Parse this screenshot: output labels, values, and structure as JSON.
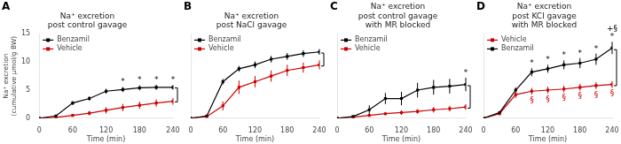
{
  "chart_data": [
    {
      "type": "line",
      "label": "A",
      "title": [
        "Na⁺ excretion",
        "post control gavage"
      ],
      "xlabel": "Time (min)",
      "ylabel": "Na⁺ excretion\n(cumulative μmol/g BW)",
      "x": [
        0,
        30,
        60,
        90,
        120,
        150,
        180,
        210,
        240
      ],
      "series": [
        {
          "name": "Benzamil",
          "color": "#000000",
          "marker": "square",
          "values": [
            0.0,
            0.4,
            2.7,
            3.5,
            4.8,
            5.1,
            5.4,
            5.5,
            5.5
          ],
          "errors": [
            0.0,
            0.15,
            0.35,
            0.4,
            0.45,
            0.45,
            0.45,
            0.45,
            0.4
          ]
        },
        {
          "name": "Vehicle",
          "color": "#cc0000",
          "marker": "square",
          "values": [
            0.0,
            0.15,
            0.5,
            0.9,
            1.4,
            1.9,
            2.3,
            2.7,
            3.0
          ],
          "errors": [
            0.0,
            0.1,
            0.2,
            0.4,
            0.55,
            0.65,
            0.65,
            0.65,
            0.6
          ]
        }
      ],
      "legend_entries": [
        "Benzamil",
        "Vehicle"
      ],
      "annotations": [
        {
          "text": "*",
          "x": 150,
          "series": "Benzamil",
          "position": "above",
          "color": "#000000"
        },
        {
          "text": "*",
          "x": 180,
          "series": "Benzamil",
          "position": "above",
          "color": "#000000"
        },
        {
          "text": "*",
          "x": 210,
          "series": "Benzamil",
          "position": "above",
          "color": "#000000"
        },
        {
          "text": "*",
          "x": 240,
          "series": "Benzamil",
          "position": "above",
          "color": "#000000"
        }
      ],
      "bracket": [
        2.9,
        5.4
      ],
      "xlim": [
        0,
        240
      ],
      "xticks": [
        0,
        60,
        120,
        180,
        240
      ],
      "ylim": [
        0,
        15
      ],
      "yticks": [
        0,
        5,
        10,
        15
      ],
      "grid": false,
      "legend": "upper left"
    },
    {
      "type": "line",
      "label": "B",
      "title": [
        "Na⁺ excretion",
        "post NaCl gavage"
      ],
      "xlabel": "Time (min)",
      "x": [
        0,
        30,
        60,
        90,
        120,
        150,
        180,
        210,
        240
      ],
      "series": [
        {
          "name": "Benzamil",
          "color": "#000000",
          "marker": "square",
          "values": [
            0.0,
            0.4,
            6.5,
            8.8,
            9.5,
            10.5,
            11.0,
            11.5,
            11.8
          ],
          "errors": [
            0.0,
            0.2,
            0.5,
            0.5,
            0.6,
            0.6,
            0.6,
            0.6,
            0.5
          ]
        },
        {
          "name": "Vehicle",
          "color": "#cc0000",
          "marker": "square",
          "values": [
            0.0,
            0.3,
            2.2,
            5.5,
            6.5,
            7.5,
            8.5,
            9.0,
            9.5
          ],
          "errors": [
            0.0,
            0.2,
            0.8,
            1.2,
            1.0,
            1.0,
            1.0,
            0.9,
            0.8
          ]
        }
      ],
      "legend_entries": [
        "Benzamil",
        "Vehicle"
      ],
      "bracket": [
        9.3,
        11.6
      ],
      "xlim": [
        0,
        240
      ],
      "xticks": [
        0,
        60,
        120,
        180,
        240
      ],
      "ylim": [
        0,
        15
      ],
      "yticks": [
        0,
        5,
        10,
        15
      ],
      "grid": false,
      "legend": "upper left",
      "tick_labels": "x"
    },
    {
      "type": "line",
      "label": "C",
      "title": [
        "Na⁺ excretion",
        "post control gavage",
        "with MR blocked"
      ],
      "xlabel": "Time (min)",
      "x": [
        0,
        30,
        60,
        90,
        120,
        150,
        180,
        210,
        240
      ],
      "series": [
        {
          "name": "Benzamil",
          "color": "#000000",
          "marker": "square",
          "values": [
            0.0,
            0.3,
            1.5,
            3.5,
            3.5,
            5.0,
            5.5,
            5.7,
            6.0
          ],
          "errors": [
            0.0,
            0.2,
            0.8,
            1.0,
            1.2,
            1.3,
            1.3,
            1.3,
            1.2
          ]
        },
        {
          "name": "Vehicle",
          "color": "#cc0000",
          "marker": "square",
          "values": [
            0.0,
            0.2,
            0.5,
            0.8,
            1.0,
            1.2,
            1.5,
            1.7,
            2.0
          ],
          "errors": [
            0.0,
            0.1,
            0.2,
            0.3,
            0.4,
            0.4,
            0.5,
            0.5,
            0.5
          ]
        }
      ],
      "legend_entries": [
        "Benzamil",
        "Vehicle"
      ],
      "annotations": [
        {
          "text": "*",
          "x": 240,
          "series": "Benzamil",
          "position": "above",
          "color": "#000000"
        }
      ],
      "bracket": [
        1.8,
        5.8
      ],
      "xlim": [
        0,
        240
      ],
      "xticks": [
        0,
        60,
        120,
        180,
        240
      ],
      "ylim": [
        0,
        15
      ],
      "yticks": [
        0,
        5,
        10,
        15
      ],
      "grid": false,
      "legend": "upper left",
      "tick_labels": "x"
    },
    {
      "type": "line",
      "label": "D",
      "title": [
        "Na⁺ excretion",
        "post KCl gavage",
        "with MR blocked"
      ],
      "xlabel": "Time (min)",
      "x": [
        0,
        30,
        60,
        90,
        120,
        150,
        180,
        210,
        240
      ],
      "series": [
        {
          "name": "Benzamil",
          "color": "#000000",
          "marker": "square",
          "values": [
            0.0,
            1.0,
            5.0,
            8.2,
            8.8,
            9.5,
            9.8,
            10.5,
            12.5
          ],
          "errors": [
            0.0,
            0.3,
            0.5,
            0.7,
            0.7,
            0.8,
            0.9,
            1.0,
            1.1
          ]
        },
        {
          "name": "Vehicle",
          "color": "#cc0000",
          "marker": "square",
          "values": [
            0.0,
            0.8,
            4.2,
            4.8,
            5.0,
            5.2,
            5.5,
            5.8,
            6.0
          ],
          "errors": [
            0.0,
            0.3,
            0.6,
            0.6,
            0.6,
            0.6,
            0.6,
            0.6,
            0.6
          ]
        }
      ],
      "legend_entries": [
        "Vehicle",
        "Benzamil"
      ],
      "annotations": [
        {
          "text": "*",
          "x": 90,
          "series": "Benzamil",
          "position": "above",
          "color": "#000000"
        },
        {
          "text": "*",
          "x": 120,
          "series": "Benzamil",
          "position": "above",
          "color": "#000000"
        },
        {
          "text": "*",
          "x": 150,
          "series": "Benzamil",
          "position": "above",
          "color": "#000000"
        },
        {
          "text": "*",
          "x": 180,
          "series": "Benzamil",
          "position": "above",
          "color": "#000000"
        },
        {
          "text": "*",
          "x": 210,
          "series": "Benzamil",
          "position": "above",
          "color": "#000000"
        },
        {
          "text": "*",
          "x": 240,
          "series": "Benzamil",
          "position": "above",
          "color": "#000000"
        },
        {
          "text": "§",
          "x": 90,
          "series": "Vehicle",
          "position": "below",
          "color": "#cc0000"
        },
        {
          "text": "§",
          "x": 120,
          "series": "Vehicle",
          "position": "below",
          "color": "#cc0000"
        },
        {
          "text": "§",
          "x": 150,
          "series": "Vehicle",
          "position": "below",
          "color": "#cc0000"
        },
        {
          "text": "§",
          "x": 180,
          "series": "Vehicle",
          "position": "below",
          "color": "#cc0000"
        },
        {
          "text": "§",
          "x": 210,
          "series": "Vehicle",
          "position": "below",
          "color": "#cc0000"
        },
        {
          "text": "§",
          "x": 240,
          "series": "Vehicle",
          "position": "below",
          "color": "#cc0000"
        },
        {
          "text": "+§",
          "x": 240,
          "series": "Benzamil",
          "position": "above",
          "color": "#000000"
        }
      ],
      "bracket": [
        5.8,
        12.2
      ],
      "xlim": [
        0,
        240
      ],
      "xticks": [
        0,
        60,
        120,
        180,
        240
      ],
      "ylim": [
        0,
        15
      ],
      "yticks": [
        0,
        5,
        10,
        15
      ],
      "grid": false,
      "legend": "upper left",
      "tick_labels": "x"
    }
  ]
}
